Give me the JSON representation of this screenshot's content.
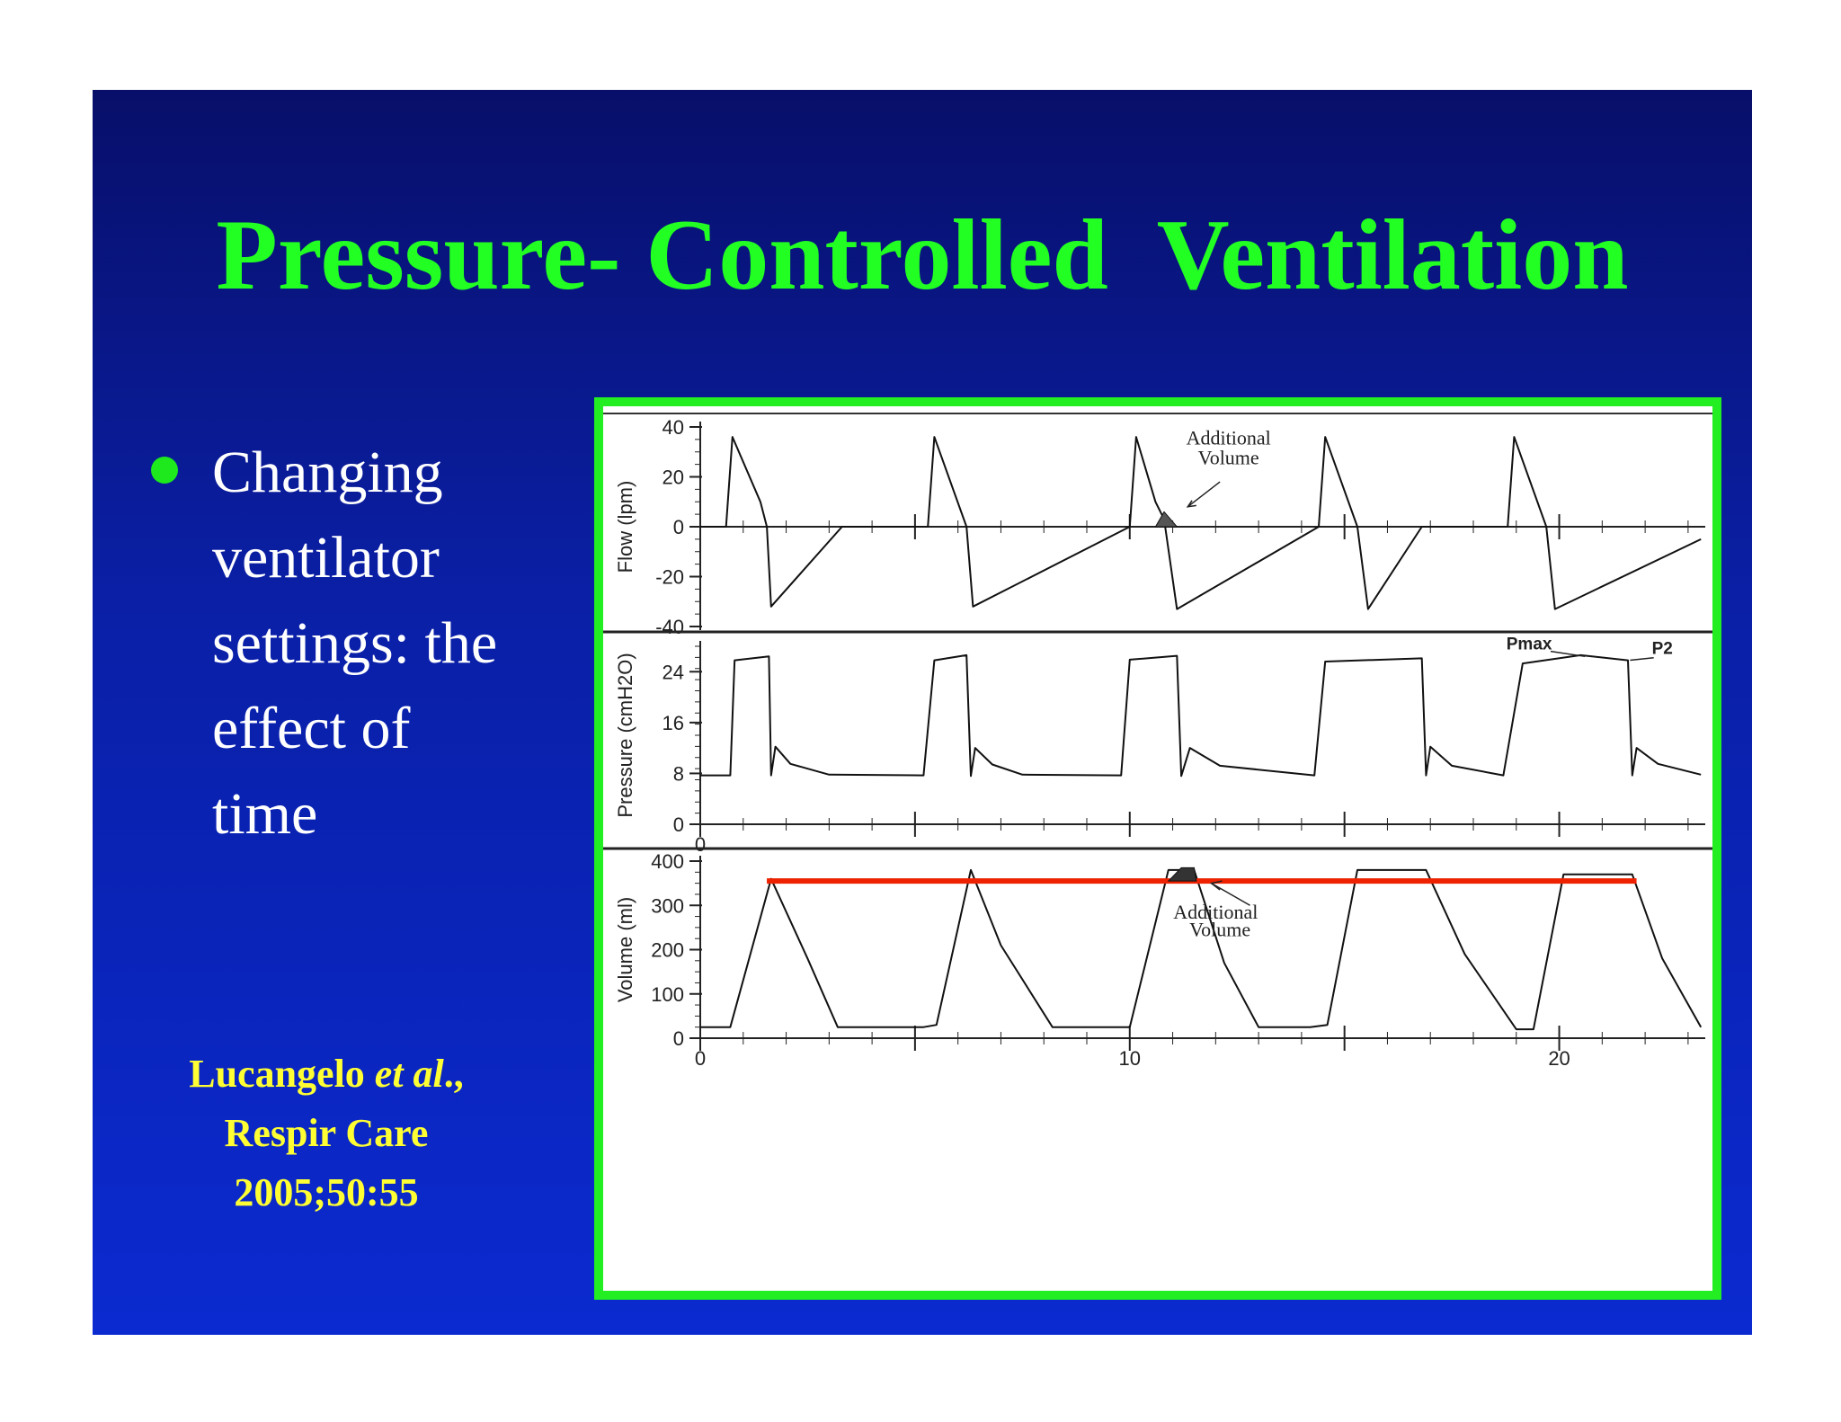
{
  "slide": {
    "title": "Pressure- Controlled  Ventilation",
    "bullet_lines": [
      "Changing",
      "ventilator",
      "settings: the",
      "effect of",
      "time"
    ],
    "citation": {
      "authors": "Lucangelo ",
      "etal": "et al",
      "suffix": ".,",
      "journal": "Respir Care",
      "ref": "2005;50:55"
    },
    "colors": {
      "title": "#22ff22",
      "text": "#ffffff",
      "citation": "#ffff33",
      "frame": "#22ee22",
      "reference_line": "#ee2200"
    }
  },
  "chart_data": [
    {
      "type": "line",
      "name": "flow",
      "ylabel": "Flow (lpm)",
      "ylim": [
        -40,
        40
      ],
      "yticks": [
        40,
        20,
        0,
        -20,
        -40
      ],
      "x": [
        0,
        0.6,
        0.75,
        1.4,
        1.55,
        1.65,
        3.3,
        5.2,
        5.3,
        5.45,
        6.2,
        6.35,
        10.0,
        10.15,
        10.6,
        10.8,
        11.1,
        14.4,
        14.55,
        15.3,
        15.55,
        16.8,
        18.8,
        18.95,
        19.7,
        19.9,
        23.3
      ],
      "y": [
        0,
        0,
        36,
        10,
        0,
        -32,
        0,
        0,
        0,
        36,
        0,
        -32,
        0,
        36,
        10,
        3,
        -33,
        0,
        36,
        0,
        -33,
        0,
        0,
        36,
        0,
        -33,
        -5
      ],
      "annotations": [
        {
          "text": "Additional",
          "x": 12.3,
          "y": 33
        },
        {
          "text": "Volume",
          "x": 12.3,
          "y": 25
        }
      ]
    },
    {
      "type": "line",
      "name": "pressure",
      "ylabel": "Pressure (cmH2O)",
      "ylim": [
        0,
        28
      ],
      "yticks": [
        24,
        16,
        8,
        0
      ],
      "x_tick_label": "0",
      "x": [
        0,
        0.7,
        0.8,
        1.6,
        1.65,
        1.75,
        2.1,
        3.0,
        5.2,
        5.45,
        6.2,
        6.3,
        6.4,
        6.8,
        7.5,
        9.8,
        10.0,
        11.1,
        11.2,
        11.4,
        12.1,
        14.3,
        14.55,
        16.8,
        16.9,
        17.0,
        17.5,
        18.7,
        19.15,
        20.5,
        21.6,
        21.7,
        21.8,
        22.3,
        23.3
      ],
      "y": [
        7.7,
        7.7,
        25.8,
        26.4,
        7.7,
        12.2,
        9.5,
        7.8,
        7.7,
        25.8,
        26.6,
        7.6,
        12.0,
        9.4,
        7.8,
        7.7,
        25.9,
        26.5,
        7.6,
        12.0,
        9.2,
        7.7,
        25.6,
        26.1,
        7.7,
        12.2,
        9.2,
        7.7,
        25.3,
        26.6,
        25.8,
        7.7,
        12.0,
        9.5,
        7.8
      ],
      "annotations": [
        {
          "text": "Pmax",
          "x": 19.3,
          "y": 27.5
        },
        {
          "text": "P2",
          "x": 22.4,
          "y": 26.8
        }
      ]
    },
    {
      "type": "line",
      "name": "volume",
      "ylabel": "Volume (ml)",
      "ylim": [
        0,
        400
      ],
      "yticks": [
        400,
        300,
        200,
        100,
        0
      ],
      "xticks": [
        0,
        10,
        20
      ],
      "xlim": [
        0,
        23.4
      ],
      "x": [
        0,
        0.7,
        1.65,
        2.5,
        3.2,
        5.2,
        5.5,
        6.3,
        7.0,
        8.2,
        9.8,
        10.0,
        10.9,
        11.5,
        12.2,
        13.0,
        14.2,
        14.6,
        15.3,
        16.9,
        17.8,
        19.0,
        19.4,
        20.1,
        21.7,
        22.4,
        23.3
      ],
      "y": [
        25,
        25,
        360,
        180,
        25,
        25,
        30,
        380,
        210,
        25,
        25,
        25,
        380,
        380,
        170,
        25,
        25,
        30,
        380,
        380,
        190,
        20,
        20,
        370,
        370,
        180,
        25
      ],
      "reference_line": {
        "y": 355,
        "x_start": 1.55,
        "x_end": 21.8
      },
      "annotations": [
        {
          "text": "Additional",
          "x": 12.0,
          "y": 270
        },
        {
          "text": "Volume",
          "x": 12.1,
          "y": 230
        }
      ]
    }
  ]
}
